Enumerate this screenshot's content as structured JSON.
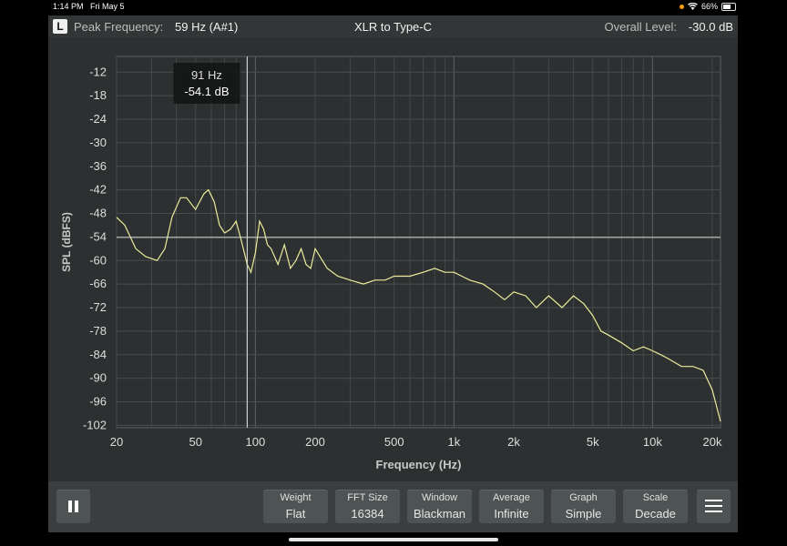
{
  "status_bar": {
    "time": "1:14 PM",
    "date": "Fri May 5",
    "battery": "66%",
    "battery_level": 0.66,
    "icons": [
      "orange-dot-icon",
      "wifi-icon",
      "battery-icon"
    ]
  },
  "header": {
    "channel": "L",
    "peak_label": "Peak Frequency:",
    "peak_value": "59 Hz (A#1)",
    "title": "XLR to Type-C",
    "overall_label": "Overall Level:",
    "overall_value": "-30.0 dB"
  },
  "cursor": {
    "freq": "91 Hz",
    "level": "-54.1 dB",
    "freq_value": 91,
    "level_value": -54.1
  },
  "chart_data": {
    "type": "line",
    "xlabel": "Frequency (Hz)",
    "ylabel": "SPL (dBFS)",
    "xscale": "log",
    "xlim": [
      20,
      22000
    ],
    "ylim": [
      -102,
      -8
    ],
    "x_ticks": [
      20,
      50,
      100,
      200,
      500,
      1000,
      2000,
      5000,
      10000,
      20000
    ],
    "x_tick_labels": [
      "20",
      "50",
      "100",
      "200",
      "500",
      "1k",
      "2k",
      "5k",
      "10k",
      "20k"
    ],
    "y_ticks": [
      -12,
      -18,
      -24,
      -30,
      -36,
      -42,
      -48,
      -54,
      -60,
      -66,
      -72,
      -78,
      -84,
      -90,
      -96,
      -102
    ],
    "y_tick_labels": [
      "-12",
      "-18",
      "-24",
      "-30",
      "-36",
      "-42",
      "-48",
      "-54",
      "-60",
      "-66",
      "-72",
      "-78",
      "-84",
      "-90",
      "-96",
      "-102"
    ],
    "grid": true,
    "line_color": "#ecec9c",
    "series": [
      {
        "x": [
          20,
          22,
          25,
          28,
          32,
          35,
          38,
          42,
          45,
          50,
          55,
          58,
          62,
          66,
          70,
          75,
          80,
          85,
          91,
          95,
          100,
          105,
          110,
          115,
          120,
          130,
          140,
          150,
          160,
          170,
          180,
          190,
          200,
          230,
          260,
          300,
          350,
          400,
          450,
          500,
          600,
          700,
          800,
          900,
          1000,
          1200,
          1400,
          1600,
          1800,
          2000,
          2300,
          2600,
          3000,
          3500,
          4000,
          4500,
          5000,
          5500,
          6000,
          7000,
          8000,
          9000,
          10000,
          11000,
          12000,
          14000,
          16000,
          18000,
          20000,
          22000
        ],
        "y": [
          -49,
          -51,
          -57,
          -59,
          -60,
          -57,
          -49,
          -44,
          -44,
          -47,
          -43,
          -42,
          -45,
          -51,
          -53,
          -52,
          -50,
          -55,
          -61,
          -63,
          -58,
          -50,
          -52,
          -56,
          -57,
          -61,
          -56,
          -62,
          -60,
          -57,
          -61,
          -62,
          -57,
          -62,
          -64,
          -65,
          -66,
          -65,
          -65,
          -64,
          -64,
          -63,
          -62,
          -63,
          -63,
          -65,
          -66,
          -68,
          -70,
          -68,
          -69,
          -72,
          -69,
          -72,
          -69,
          -71,
          -74,
          -78,
          -79,
          -81,
          -83,
          -82,
          -83,
          -84,
          -85,
          -87,
          -87,
          -88,
          -93,
          -101
        ]
      }
    ]
  },
  "toolbar": {
    "controls": [
      {
        "label": "Weight",
        "value": "Flat"
      },
      {
        "label": "FFT Size",
        "value": "16384"
      },
      {
        "label": "Window",
        "value": "Blackman"
      },
      {
        "label": "Average",
        "value": "Infinite"
      },
      {
        "label": "Graph",
        "value": "Simple"
      },
      {
        "label": "Scale",
        "value": "Decade"
      }
    ]
  }
}
